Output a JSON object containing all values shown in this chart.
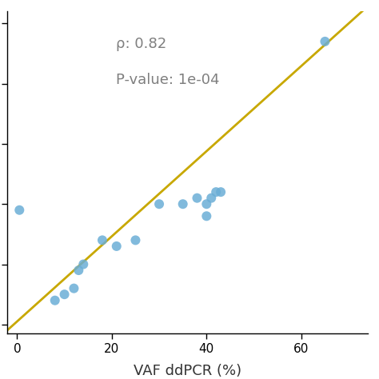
{
  "x": [
    0.5,
    8,
    10,
    12,
    13,
    14,
    18,
    21,
    25,
    30,
    35,
    38,
    40,
    40,
    41,
    42,
    43,
    65
  ],
  "y": [
    19,
    4,
    5,
    6,
    9,
    10,
    14,
    13,
    14,
    20,
    20,
    21,
    20,
    18,
    21,
    22,
    22,
    47
  ],
  "scatter_color": "#6BAED6",
  "line_color": "#C8A800",
  "xlabel": "VAF ddPCR (%)",
  "rho_text": "ρ: 0.82",
  "pval_text": "P-value: 1e-04",
  "annotation_color": "#7F7F7F",
  "xlim": [
    -2,
    74
  ],
  "ylim": [
    -1.5,
    52
  ],
  "xticks": [
    0,
    20,
    40,
    60
  ],
  "yticks": [
    0,
    10,
    20,
    30,
    40,
    50
  ],
  "background_color": "#ffffff",
  "dot_size": 75,
  "line_width": 2.0,
  "tick_labelsize": 11,
  "xlabel_fontsize": 13,
  "annot_fontsize": 13
}
